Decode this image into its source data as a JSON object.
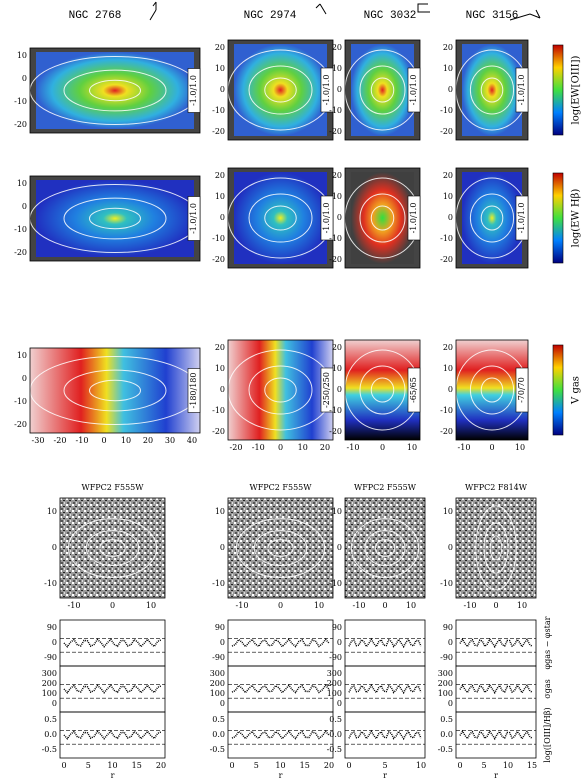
{
  "galaxies": [
    "NGC 2768",
    "NGC 2974",
    "NGC 3032",
    "NGC 3156"
  ],
  "map_rows": [
    {
      "colorbar_label": "log(EW[OIII])",
      "ranges": [
        "-1.0/1.0",
        "-1.0/1.0",
        "-1.0/1.0",
        "-1.0/1.0"
      ]
    },
    {
      "colorbar_label": "log(EW Hβ)",
      "ranges": [
        "-1.0/1.0",
        "-1.0/1.0",
        "-1.0/1.0",
        "-1.0/1.0"
      ]
    },
    {
      "colorbar_label": "V gas",
      "ranges": [
        "-180/180",
        "-250/250",
        "-65/65",
        "-70/70"
      ]
    }
  ],
  "map_yticks": [
    [
      "10",
      "0",
      "-10",
      "-20"
    ],
    [
      "20",
      "10",
      "0",
      "-10",
      "-20"
    ],
    [
      "20",
      "10",
      "0",
      "-10",
      "-20"
    ],
    [
      "20",
      "10",
      "0",
      "-10",
      "-20"
    ]
  ],
  "map_xticks": [
    [
      "-30",
      "-20",
      "-10",
      "0",
      "10",
      "20",
      "30",
      "40"
    ],
    [
      "-20",
      "-10",
      "0",
      "10",
      "20"
    ],
    [
      "-10",
      "0",
      "10"
    ],
    [
      "-10",
      "0",
      "10"
    ]
  ],
  "filters": [
    "WFPC2 F555W",
    "WFPC2 F555W",
    "WFPC2 F555W",
    "WFPC2 F814W"
  ],
  "image_yticks": [
    "10",
    "0",
    "-10"
  ],
  "image_xticks": [
    "-10",
    "0",
    "10"
  ],
  "profile_yticks": [
    [
      "90",
      "0",
      "-90"
    ],
    [
      "300",
      "200",
      "100",
      "0"
    ],
    [
      "0.5",
      "0.0",
      "-0.5"
    ]
  ],
  "profile_xticks": [
    [
      "0",
      "5",
      "10",
      "15",
      "20"
    ],
    [
      "0",
      "5",
      "10",
      "15",
      "20"
    ],
    [
      "0",
      "5",
      "10"
    ],
    [
      "0",
      "5",
      "10",
      "15"
    ]
  ],
  "profile_labels": [
    "φgas − φstar",
    "σgas",
    "log([OIII]/Hβ)"
  ],
  "x_label": "r"
}
